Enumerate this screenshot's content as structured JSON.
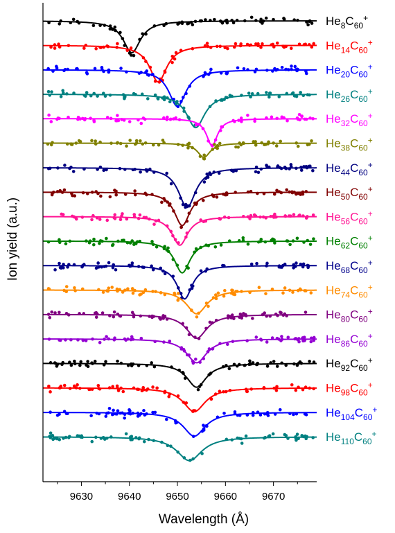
{
  "chart_data": {
    "type": "line",
    "xlabel": "Wavelength (Å)",
    "ylabel": "Ion yield (a.u.)",
    "xlim": [
      9622,
      9679
    ],
    "x_ticks": [
      9630,
      9640,
      9650,
      9660,
      9670
    ],
    "x_tick_labels": [
      "9630",
      "9640",
      "9650",
      "9660",
      "9670"
    ],
    "y_ticks_labeled": false,
    "grid": false,
    "legend_placement": "right, beside each trace",
    "series": [
      {
        "label_pre": "He",
        "label_sub": "8",
        "label_mid": "C",
        "label_sub2": "60",
        "label_sup": "+",
        "color": "#000000",
        "center": 9640.5,
        "width": 2.2,
        "depth": 1.0
      },
      {
        "label_pre": "He",
        "label_sub": "14",
        "label_mid": "C",
        "label_sub2": "60",
        "label_sup": "+",
        "color": "#ff0000",
        "center": 9646.0,
        "width": 2.2,
        "depth": 1.15
      },
      {
        "label_pre": "He",
        "label_sub": "20",
        "label_mid": "C",
        "label_sub2": "60",
        "label_sup": "+",
        "color": "#0000ff",
        "center": 9650.0,
        "width": 2.2,
        "depth": 1.15
      },
      {
        "label_pre": "He",
        "label_sub": "26",
        "label_mid": "C",
        "label_sub2": "60",
        "label_sup": "+",
        "color": "#008080",
        "center": 9653.8,
        "width": 2.3,
        "depth": 1.05
      },
      {
        "label_pre": "He",
        "label_sub": "32",
        "label_mid": "C",
        "label_sub2": "60",
        "label_sup": "+",
        "color": "#ff00ff",
        "center": 9657.2,
        "width": 1.4,
        "depth": 0.85
      },
      {
        "label_pre": "He",
        "label_sub": "38",
        "label_mid": "C",
        "label_sub2": "60",
        "label_sup": "+",
        "color": "#808000",
        "center": 9655.5,
        "width": 1.6,
        "depth": 0.45
      },
      {
        "label_pre": "He",
        "label_sub": "44",
        "label_mid": "C",
        "label_sub2": "60",
        "label_sup": "+",
        "color": "#000080",
        "center": 9652.0,
        "width": 2.2,
        "depth": 1.25
      },
      {
        "label_pre": "He",
        "label_sub": "50",
        "label_mid": "C",
        "label_sub2": "60",
        "label_sup": "+",
        "color": "#800000",
        "center": 9651.0,
        "width": 2.0,
        "depth": 1.05
      },
      {
        "label_pre": "He",
        "label_sub": "56",
        "label_mid": "C",
        "label_sub2": "60",
        "label_sup": "+",
        "color": "#ff1493",
        "center": 9650.5,
        "width": 2.0,
        "depth": 0.9
      },
      {
        "label_pre": "He",
        "label_sub": "62",
        "label_mid": "C",
        "label_sub2": "60",
        "label_sup": "+",
        "color": "#008000",
        "center": 9651.0,
        "width": 2.0,
        "depth": 1.0
      },
      {
        "label_pre": "He",
        "label_sub": "68",
        "label_mid": "C",
        "label_sub2": "60",
        "label_sup": "+",
        "color": "#00008b",
        "center": 9651.5,
        "width": 1.9,
        "depth": 1.05
      },
      {
        "label_pre": "He",
        "label_sub": "74",
        "label_mid": "C",
        "label_sub2": "60",
        "label_sup": "+",
        "color": "#ff8c00",
        "center": 9654.0,
        "width": 2.6,
        "depth": 0.75
      },
      {
        "label_pre": "He",
        "label_sub": "80",
        "label_mid": "C",
        "label_sub2": "60",
        "label_sup": "+",
        "color": "#800080",
        "center": 9654.0,
        "width": 2.6,
        "depth": 0.75
      },
      {
        "label_pre": "He",
        "label_sub": "86",
        "label_mid": "C",
        "label_sub2": "60",
        "label_sup": "+",
        "color": "#9400d3",
        "center": 9654.0,
        "width": 2.6,
        "depth": 0.75
      },
      {
        "label_pre": "He",
        "label_sub": "92",
        "label_mid": "C",
        "label_sub2": "60",
        "label_sup": "+",
        "color": "#000000",
        "center": 9654.0,
        "width": 2.5,
        "depth": 0.75
      },
      {
        "label_pre": "He",
        "label_sub": "98",
        "label_mid": "C",
        "label_sub2": "60",
        "label_sup": "+",
        "color": "#ff0000",
        "center": 9653.5,
        "width": 2.8,
        "depth": 0.75
      },
      {
        "label_pre": "He",
        "label_sub": "104",
        "label_mid": "C",
        "label_sub2": "60",
        "label_sup": "+",
        "color": "#0000ff",
        "center": 9653.5,
        "width": 2.8,
        "depth": 0.75
      },
      {
        "label_pre": "He",
        "label_sub": "110",
        "label_mid": "C",
        "label_sub2": "60",
        "label_sup": "+",
        "color": "#008080",
        "center": 9652.5,
        "width": 3.2,
        "depth": 0.75
      }
    ]
  }
}
